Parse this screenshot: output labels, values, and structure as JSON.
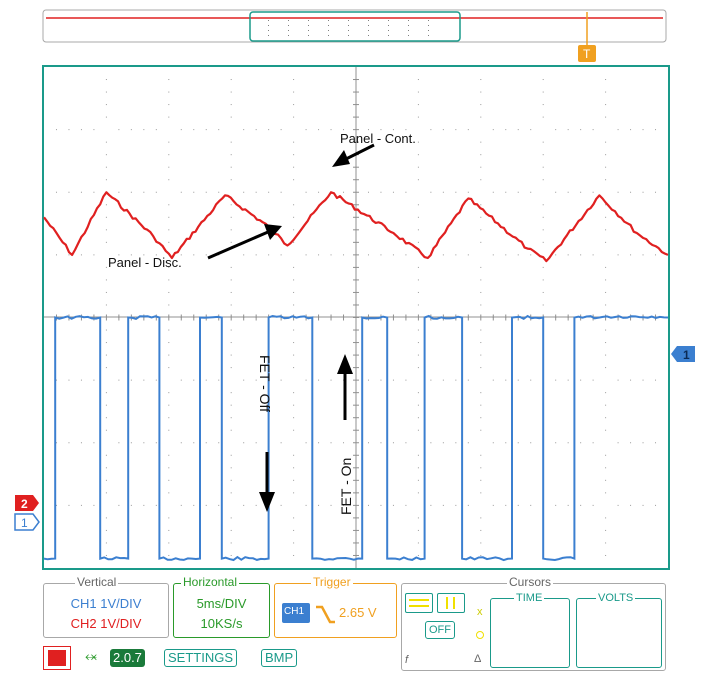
{
  "window": {
    "title": ""
  },
  "annotations": {
    "panel_cont": "Panel - Cont.",
    "panel_disc": "Panel - Disc.",
    "fet_off": "FET - Off",
    "fet_on": "FET - On"
  },
  "markers": {
    "ch1_left": "1",
    "ch2_left": "2",
    "ch1_right": "1",
    "trigger_top": "T"
  },
  "vertical": {
    "legend": "Vertical",
    "ch1": "CH1 1V/DIV",
    "ch2": "CH2 1V/DIV"
  },
  "horizontal": {
    "legend": "Horizontal",
    "timebase": "5ms/DIV",
    "samplerate": "10KS/s"
  },
  "trigger": {
    "legend": "Trigger",
    "source": "CH1",
    "level": "2.65 V"
  },
  "cursors": {
    "legend": "Cursors",
    "time": "TIME",
    "volts": "VOLTS",
    "off": "OFF",
    "x_label": "x",
    "delta_label": "Δ",
    "f_label": "f"
  },
  "toolbar": {
    "version": "2.0.7",
    "settings": "SETTINGS",
    "bmp": "BMP"
  },
  "colors": {
    "ch1": "#3b7fd0",
    "ch2": "#e02020",
    "trigger": "#f0a020",
    "horizontal": "#2a9a2a",
    "accent": "#1a9a8a",
    "grid": "#9a9a9a"
  },
  "chart_data": {
    "type": "line",
    "title": "",
    "xlabel": "",
    "ylabel": "",
    "x_divisions": 10,
    "y_divisions": 8,
    "timebase": "5ms/DIV",
    "series": [
      {
        "name": "CH2",
        "description_channel": "CH2",
        "shape": "sawtooth-like ripple",
        "points_div": [
          [
            0,
            5.6
          ],
          [
            0.45,
            5.0
          ],
          [
            1.0,
            6.0
          ],
          [
            1.75,
            5.3
          ],
          [
            2.05,
            4.95
          ],
          [
            2.9,
            5.95
          ],
          [
            3.6,
            5.45
          ],
          [
            3.9,
            5.15
          ],
          [
            4.6,
            6.0
          ],
          [
            5.6,
            5.35
          ],
          [
            6.15,
            4.95
          ],
          [
            6.8,
            5.9
          ],
          [
            7.75,
            5.1
          ],
          [
            8.05,
            4.9
          ],
          [
            8.9,
            5.95
          ],
          [
            9.5,
            5.35
          ],
          [
            10,
            5.0
          ]
        ]
      },
      {
        "name": "CH1",
        "description_channel": "CH1",
        "shape": "square wave",
        "points_div": [
          [
            0,
            0.15
          ],
          [
            0.18,
            0.15
          ],
          [
            0.18,
            4.0
          ],
          [
            0.9,
            4.0
          ],
          [
            0.9,
            0.15
          ],
          [
            1.35,
            0.15
          ],
          [
            1.35,
            4.0
          ],
          [
            1.85,
            4.0
          ],
          [
            1.85,
            0.15
          ],
          [
            2.5,
            0.15
          ],
          [
            2.5,
            4.0
          ],
          [
            2.85,
            4.0
          ],
          [
            2.85,
            0.15
          ],
          [
            3.6,
            0.15
          ],
          [
            3.6,
            4.0
          ],
          [
            4.3,
            4.0
          ],
          [
            4.3,
            0.15
          ],
          [
            5.1,
            0.15
          ],
          [
            5.1,
            4.0
          ],
          [
            5.5,
            4.0
          ],
          [
            5.5,
            0.15
          ],
          [
            6.1,
            0.15
          ],
          [
            6.1,
            4.0
          ],
          [
            6.7,
            4.0
          ],
          [
            6.7,
            0.15
          ],
          [
            7.5,
            0.15
          ],
          [
            7.5,
            4.0
          ],
          [
            8.0,
            4.0
          ],
          [
            8.0,
            0.15
          ],
          [
            8.5,
            0.15
          ],
          [
            8.5,
            4.0
          ],
          [
            10,
            4.0
          ]
        ]
      }
    ]
  }
}
